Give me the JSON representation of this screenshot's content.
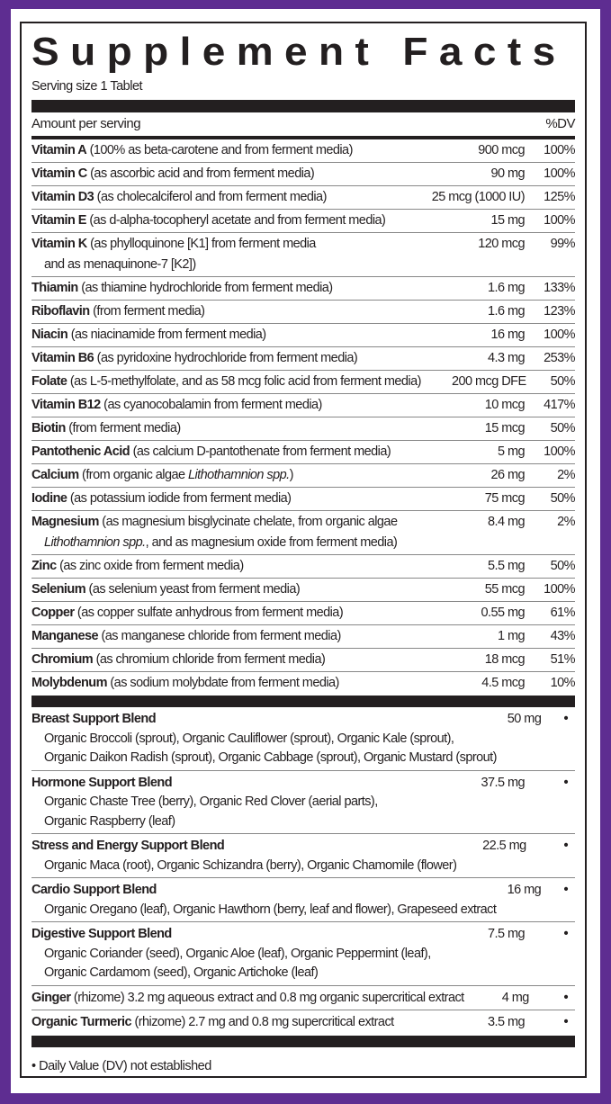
{
  "colors": {
    "frame": "#5e2d91",
    "ink": "#231f20"
  },
  "title": "Supplement Facts",
  "serving": "Serving size 1 Tablet",
  "header": {
    "amount": "Amount per serving",
    "dv": "%DV"
  },
  "nutrients": [
    {
      "name": "Vitamin A",
      "lines": [
        [
          {
            "t": " (100% as beta-carotene and from ferment media)"
          }
        ]
      ],
      "amount": "900 mcg",
      "dv": "100%"
    },
    {
      "name": "Vitamin C",
      "lines": [
        [
          {
            "t": " (as ascorbic acid and from ferment media)"
          }
        ]
      ],
      "amount": "90 mg",
      "dv": "100%"
    },
    {
      "name": "Vitamin D3",
      "lines": [
        [
          {
            "t": " (as cholecalciferol and from ferment media)"
          }
        ]
      ],
      "amount": "25 mcg (1000 IU)",
      "dv": "125%"
    },
    {
      "name": "Vitamin E",
      "lines": [
        [
          {
            "t": " (as d-alpha-tocopheryl acetate and from ferment media)"
          }
        ]
      ],
      "amount": "15 mg",
      "dv": "100%"
    },
    {
      "name": "Vitamin K",
      "lines": [
        [
          {
            "t": " (as phylloquinone [K1] from ferment media"
          }
        ],
        [
          {
            "t": "and as menaquinone-7 [K2])"
          }
        ]
      ],
      "amount": "120 mcg",
      "dv": "99%"
    },
    {
      "name": "Thiamin",
      "lines": [
        [
          {
            "t": " (as thiamine hydrochloride from ferment media)"
          }
        ]
      ],
      "amount": "1.6 mg",
      "dv": "133%"
    },
    {
      "name": "Riboflavin",
      "lines": [
        [
          {
            "t": " (from ferment media)"
          }
        ]
      ],
      "amount": "1.6 mg",
      "dv": "123%"
    },
    {
      "name": "Niacin",
      "lines": [
        [
          {
            "t": " (as niacinamide from ferment media)"
          }
        ]
      ],
      "amount": "16 mg",
      "dv": "100%"
    },
    {
      "name": "Vitamin B6",
      "lines": [
        [
          {
            "t": " (as pyridoxine hydrochloride from ferment media)"
          }
        ]
      ],
      "amount": "4.3 mg",
      "dv": "253%"
    },
    {
      "name": "Folate",
      "lines": [
        [
          {
            "t": " (as L-5-methylfolate, and as 58 mcg folic acid from ferment media)"
          }
        ]
      ],
      "amount": "200 mcg DFE",
      "dv": "50%"
    },
    {
      "name": "Vitamin B12",
      "lines": [
        [
          {
            "t": " (as cyanocobalamin from ferment media)"
          }
        ]
      ],
      "amount": "10 mcg",
      "dv": "417%"
    },
    {
      "name": "Biotin",
      "lines": [
        [
          {
            "t": " (from ferment media)"
          }
        ]
      ],
      "amount": "15 mcg",
      "dv": "50%"
    },
    {
      "name": "Pantothenic Acid",
      "lines": [
        [
          {
            "t": " (as calcium D-pantothenate from ferment media)"
          }
        ]
      ],
      "amount": "5 mg",
      "dv": "100%"
    },
    {
      "name": "Calcium",
      "lines": [
        [
          {
            "t": " (from organic algae "
          },
          {
            "t": "Lithothamnion spp.",
            "i": true
          },
          {
            "t": ")"
          }
        ]
      ],
      "amount": "26 mg",
      "dv": "2%"
    },
    {
      "name": "Iodine",
      "lines": [
        [
          {
            "t": " (as potassium iodide from ferment media)"
          }
        ]
      ],
      "amount": "75 mcg",
      "dv": "50%"
    },
    {
      "name": "Magnesium",
      "lines": [
        [
          {
            "t": " (as magnesium bisglycinate chelate, from organic algae"
          }
        ],
        [
          {
            "t": "Lithothamnion spp.",
            "i": true
          },
          {
            "t": ", and as magnesium oxide from ferment media)"
          }
        ]
      ],
      "amount": "8.4 mg",
      "dv": "2%"
    },
    {
      "name": "Zinc",
      "lines": [
        [
          {
            "t": " (as zinc oxide from ferment media)"
          }
        ]
      ],
      "amount": "5.5 mg",
      "dv": "50%"
    },
    {
      "name": "Selenium",
      "lines": [
        [
          {
            "t": " (as selenium yeast from ferment media)"
          }
        ]
      ],
      "amount": "55 mcg",
      "dv": "100%"
    },
    {
      "name": "Copper",
      "lines": [
        [
          {
            "t": " (as copper sulfate anhydrous from ferment media)"
          }
        ]
      ],
      "amount": "0.55 mg",
      "dv": "61%"
    },
    {
      "name": "Manganese",
      "lines": [
        [
          {
            "t": " (as manganese chloride from ferment media)"
          }
        ]
      ],
      "amount": "1 mg",
      "dv": "43%"
    },
    {
      "name": "Chromium",
      "lines": [
        [
          {
            "t": " (as chromium chloride from ferment media)"
          }
        ]
      ],
      "amount": "18 mcg",
      "dv": "51%"
    },
    {
      "name": "Molybdenum",
      "lines": [
        [
          {
            "t": " (as sodium molybdate from ferment media)"
          }
        ]
      ],
      "amount": "4.5 mcg",
      "dv": "10%"
    }
  ],
  "blends": [
    {
      "name": "Breast Support Blend",
      "rest": "",
      "amount": "50 mg",
      "dv": "•",
      "sub": [
        "Organic Broccoli (sprout), Organic Cauliflower (sprout), Organic Kale (sprout),",
        "Organic Daikon Radish (sprout), Organic Cabbage (sprout), Organic Mustard (sprout)"
      ]
    },
    {
      "name": "Hormone Support Blend",
      "rest": "",
      "amount": "37.5 mg",
      "dv": "•",
      "sub": [
        "Organic Chaste Tree (berry), Organic Red Clover (aerial parts),",
        "Organic Raspberry (leaf)"
      ]
    },
    {
      "name": "Stress and Energy Support Blend",
      "rest": "",
      "amount": "22.5 mg",
      "dv": "•",
      "sub": [
        "Organic Maca (root), Organic Schizandra (berry), Organic Chamomile (flower)"
      ]
    },
    {
      "name": "Cardio Support Blend",
      "rest": "",
      "amount": "16 mg",
      "dv": "•",
      "sub": [
        "Organic Oregano (leaf), Organic Hawthorn (berry, leaf and flower), Grapeseed extract"
      ]
    },
    {
      "name": "Digestive Support Blend",
      "rest": "",
      "amount": "7.5 mg",
      "dv": "•",
      "sub": [
        "Organic Coriander (seed), Organic Aloe (leaf), Organic Peppermint (leaf),",
        "Organic Cardamom (seed), Organic Artichoke (leaf)"
      ]
    },
    {
      "name": "Ginger",
      "rest": " (rhizome) 3.2 mg aqueous extract and 0.8 mg organic supercritical extract",
      "amount": "4 mg",
      "dv": "•",
      "sub": []
    },
    {
      "name": "Organic Turmeric",
      "rest": " (rhizome) 2.7 mg and 0.8 mg supercritical extract",
      "amount": "3.5 mg",
      "dv": "•",
      "sub": []
    }
  ],
  "footnote": "• Daily Value (DV) not established"
}
